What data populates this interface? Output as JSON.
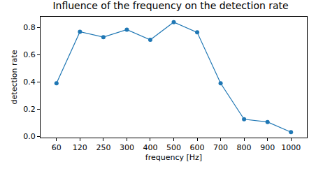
{
  "chart_data": {
    "type": "line",
    "title": "Influence of the frequency on the detection rate",
    "x_label": "frequency [Hz]",
    "y_label": "detection rate",
    "categories": [
      "60",
      "120",
      "250",
      "300",
      "400",
      "500",
      "600",
      "700",
      "800",
      "900",
      "1000"
    ],
    "values": [
      0.39,
      0.77,
      0.73,
      0.785,
      0.71,
      0.84,
      0.765,
      0.39,
      0.125,
      0.105,
      0.03
    ],
    "color": "#1f77b4",
    "marker": "circle",
    "line_style": "solid",
    "ylim": [
      -0.01,
      0.88
    ],
    "yticks": [
      {
        "value": 0,
        "label": "0.0"
      },
      0.2,
      0.4,
      0.6,
      0.8
    ],
    "grid": false
  }
}
